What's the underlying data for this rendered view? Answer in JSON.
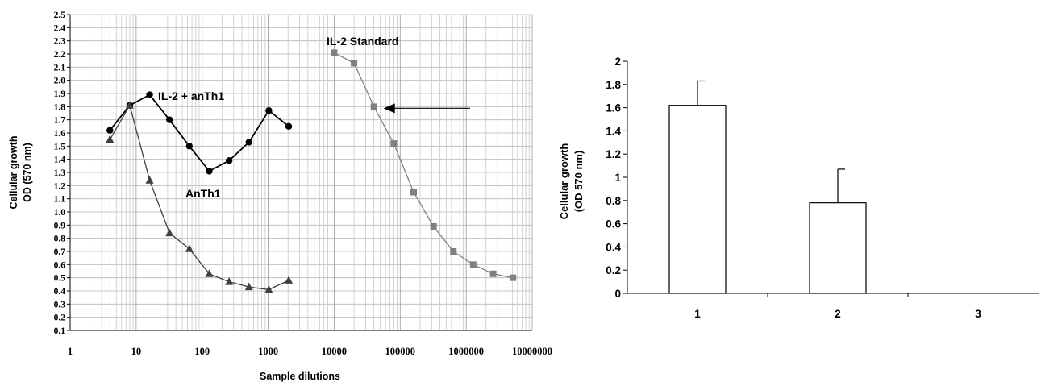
{
  "chart_data": [
    {
      "type": "line",
      "title": "",
      "xlabel": "Sample dilutions",
      "ylabel_line1": "Cellular growth",
      "ylabel_line2": "OD (570 nm)",
      "x_scale": "log",
      "xlim": [
        1,
        10000000
      ],
      "ylim": [
        0.1,
        2.5
      ],
      "grid": true,
      "x_tick_labels": [
        "1",
        "10",
        "100",
        "1000",
        "10000",
        "100000",
        "1000000",
        "10000000"
      ],
      "y_tick_labels": [
        "0.1",
        "0.2",
        "0.3",
        "0.4",
        "0.5",
        "0.6",
        "0.7",
        "0.8",
        "0.9",
        "1.0",
        "1.1",
        "1.2",
        "1.3",
        "1.4",
        "1.5",
        "1.6",
        "1.7",
        "1.8",
        "1.9",
        "2.0",
        "2.1",
        "2.2",
        "2.3",
        "2.4",
        "2.5"
      ],
      "series": [
        {
          "name": "IL-2 + anTh1",
          "marker": "circle",
          "color": "#000000",
          "x": [
            4,
            8,
            16,
            32,
            64,
            128,
            256,
            512,
            1024,
            2048
          ],
          "y": [
            1.62,
            1.81,
            1.89,
            1.7,
            1.5,
            1.31,
            1.39,
            1.53,
            1.77,
            1.65
          ]
        },
        {
          "name": "AnTh1",
          "marker": "triangle",
          "color": "#404040",
          "x": [
            4,
            8,
            16,
            32,
            64,
            128,
            256,
            512,
            1024,
            2048
          ],
          "y": [
            1.55,
            1.81,
            1.24,
            0.84,
            0.72,
            0.53,
            0.47,
            0.43,
            0.41,
            0.48
          ]
        },
        {
          "name": "IL-2 Standard",
          "marker": "square",
          "color": "#808080",
          "x": [
            10000,
            20000,
            40000,
            80000,
            160000,
            320000,
            640000,
            1280000,
            2560000,
            5120000
          ],
          "y": [
            2.21,
            2.13,
            1.8,
            1.52,
            1.15,
            0.89,
            0.7,
            0.6,
            0.53,
            0.5
          ]
        }
      ],
      "annotation": {
        "type": "arrow",
        "points_to": {
          "x": 40000,
          "y": 1.8
        }
      }
    },
    {
      "type": "bar",
      "title": "",
      "xlabel": "",
      "ylabel_line1": "Cellular growth",
      "ylabel_line2": "(OD 570 nm)",
      "categories": [
        "1",
        "2",
        "3"
      ],
      "values": [
        1.62,
        0.78,
        0
      ],
      "error_bars": [
        0.21,
        0.29,
        0
      ],
      "ylim": [
        0,
        2
      ],
      "y_tick_labels": [
        "0",
        "0.2",
        "0.4",
        "0.6",
        "0.8",
        "1",
        "1.2",
        "1.4",
        "1.6",
        "1.8",
        "2"
      ],
      "grid": false,
      "bar_fill": "#ffffff",
      "bar_stroke": "#000000"
    }
  ]
}
